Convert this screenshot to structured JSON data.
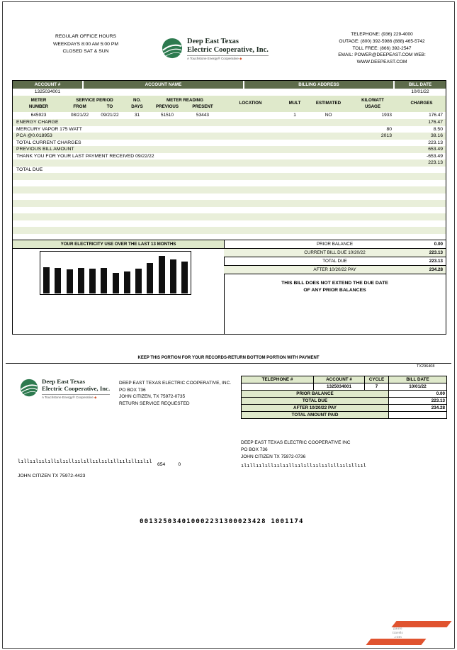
{
  "colors": {
    "header_bar": "#5d6b4b",
    "row_stripe": "#e9efda",
    "panel_header": "#dfe9cb",
    "watermark_accent": "#e0532f"
  },
  "header": {
    "office_hours": [
      "REGULAR OFFICE HOURS",
      "WEEKDAYS 8:00 AM 5:00 PM",
      "CLOSED SAT & SUN"
    ],
    "logo": {
      "line1": "Deep East Texas",
      "line2": "Electric Cooperative, Inc.",
      "tagline": "A Touchstone Energy® Cooperative"
    },
    "contact": [
      "TELEPHONE: (936) 229-4000",
      "OUTAGE: (800) 392-5986 (888) 465-5742",
      "TOLL FREE: (866) 392-2547",
      "EMAIL: POWER@DEEPEAST.COM WEB:",
      "WWW.DEEPEAST.COM"
    ]
  },
  "account_bar": {
    "headers": [
      "ACCOUNT #",
      "ACCOUNT NAME",
      "BILLING ADDRESS",
      "BILL DATE"
    ],
    "account_number": "1325034001",
    "account_name": "",
    "billing_address": "",
    "bill_date": "10/01/22"
  },
  "meter": {
    "h_meter_1": "METER",
    "h_meter_2": "NUMBER",
    "h_service": "SERVICE PERIOD",
    "h_from": "FROM",
    "h_to": "TO",
    "h_no": "NO.",
    "h_days": "DAYS",
    "h_reading": "METER READING",
    "h_prev": "PREVIOUS",
    "h_pres": "PRESENT",
    "h_location": "LOCATION",
    "h_mult": "MULT",
    "h_estimated": "ESTIMATED",
    "h_kw_1": "KILOWATT",
    "h_kw_2": "USAGE",
    "h_charges": "CHARGES",
    "meter_number": "645923",
    "from": "08/21/22",
    "to": "09/21/22",
    "days": "31",
    "previous": "51510",
    "present": "53443",
    "location": "",
    "mult": "1",
    "estimated": "NO",
    "kilowatt_usage": "1933",
    "charges": "176.47"
  },
  "charges": {
    "rows": [
      {
        "desc": "ENERGY CHARGE",
        "usage": "",
        "amount": "176.47"
      },
      {
        "desc": "MERCURY VAPOR 175 WATT",
        "usage": "80",
        "amount": "8.50"
      },
      {
        "desc": "PCA @0.018953",
        "usage": "2013",
        "amount": "38.16"
      },
      {
        "desc": "TOTAL CURRENT CHARGES",
        "usage": "",
        "amount": "223.13"
      },
      {
        "desc": "PREVIOUS BILL AMOUNT",
        "usage": "",
        "amount": "653.49"
      },
      {
        "desc": "THANK YOU FOR YOUR LAST PAYMENT RECEIVED 09/22/22",
        "usage": "",
        "amount": "-653.49"
      },
      {
        "desc": "",
        "usage": "",
        "amount": "223.13"
      },
      {
        "desc": "TOTAL DUE",
        "usage": "",
        "amount": ""
      }
    ]
  },
  "chart_data": {
    "type": "bar",
    "title": "YOUR ELECTRICITY USE OVER THE LAST 13 MONTHS",
    "values": [
      1600,
      1540,
      1450,
      1560,
      1500,
      1550,
      1250,
      1340,
      1500,
      1860,
      2250,
      2060,
      1933
    ],
    "ylim": [
      0,
      2400
    ],
    "xlabel": "",
    "ylabel": "",
    "bar_color": "#101010"
  },
  "summary": {
    "rows": [
      {
        "label": "PRIOR BALANCE",
        "value": "0.00"
      },
      {
        "label": "CURRENT BILL DUE 10/20/22",
        "value": "223.13"
      },
      {
        "label": "TOTAL DUE",
        "value": "223.13"
      },
      {
        "label": "AFTER 10/20/22 PAY",
        "value": "234.28"
      }
    ],
    "note1": "THIS BILL DOES NOT EXTEND THE DUE DATE",
    "note2": "OF ANY PRIOR BALANCES"
  },
  "divider": {
    "keep_text": "KEEP THIS PORTION FOR YOUR RECORDS-RETURN BOTTOM PORTION WITH PAYMENT",
    "form_code": "TX296408"
  },
  "stub": {
    "return_address": [
      "DEEP EAST TEXAS ELECTRIC COOPERATIVE, INC.",
      "PO BOX 736",
      "JOHN CITIZEN, TX 75972-0735",
      "RETURN SERVICE REQUESTED"
    ],
    "table_headers": [
      "TELEPHONE #",
      "ACCOUNT #",
      "CYCLE",
      "BILL DATE"
    ],
    "telephone": "",
    "account_number": "1325034001",
    "cycle": "7",
    "bill_date": "10/01/22",
    "rows": [
      {
        "label": "PRIOR BALANCE",
        "value": "0.00"
      },
      {
        "label": "TOTAL DUE",
        "value": "223.13"
      },
      {
        "label": "AFTER 10/20/22 PAY",
        "value": "234.28"
      },
      {
        "label": "TOTAL AMOUNT PAID",
        "value": ""
      }
    ],
    "mail_to": [
      "DEEP EAST TEXAS ELECTRIC COOPERATIVE INC",
      "PO BOX 736",
      "JOHN CITIZEN TX 75972-0736"
    ],
    "bundle_number": "654",
    "bundle_digit": "0",
    "customer_line": "JOHN CITIZEN TX 75972-4423",
    "ocr_line": "001325034010002231300023428 1001174",
    "barcode1": "lıllıılıılıllılııllıılıllıılıılıllıılıllıılıl",
    "barcode2": "ılıllıılıllıılııllıılıllıılıılıllıılıllııl"
  },
  "watermark": {
    "line1": "paulo",
    "line2": "travels",
    "line3": ".com"
  }
}
